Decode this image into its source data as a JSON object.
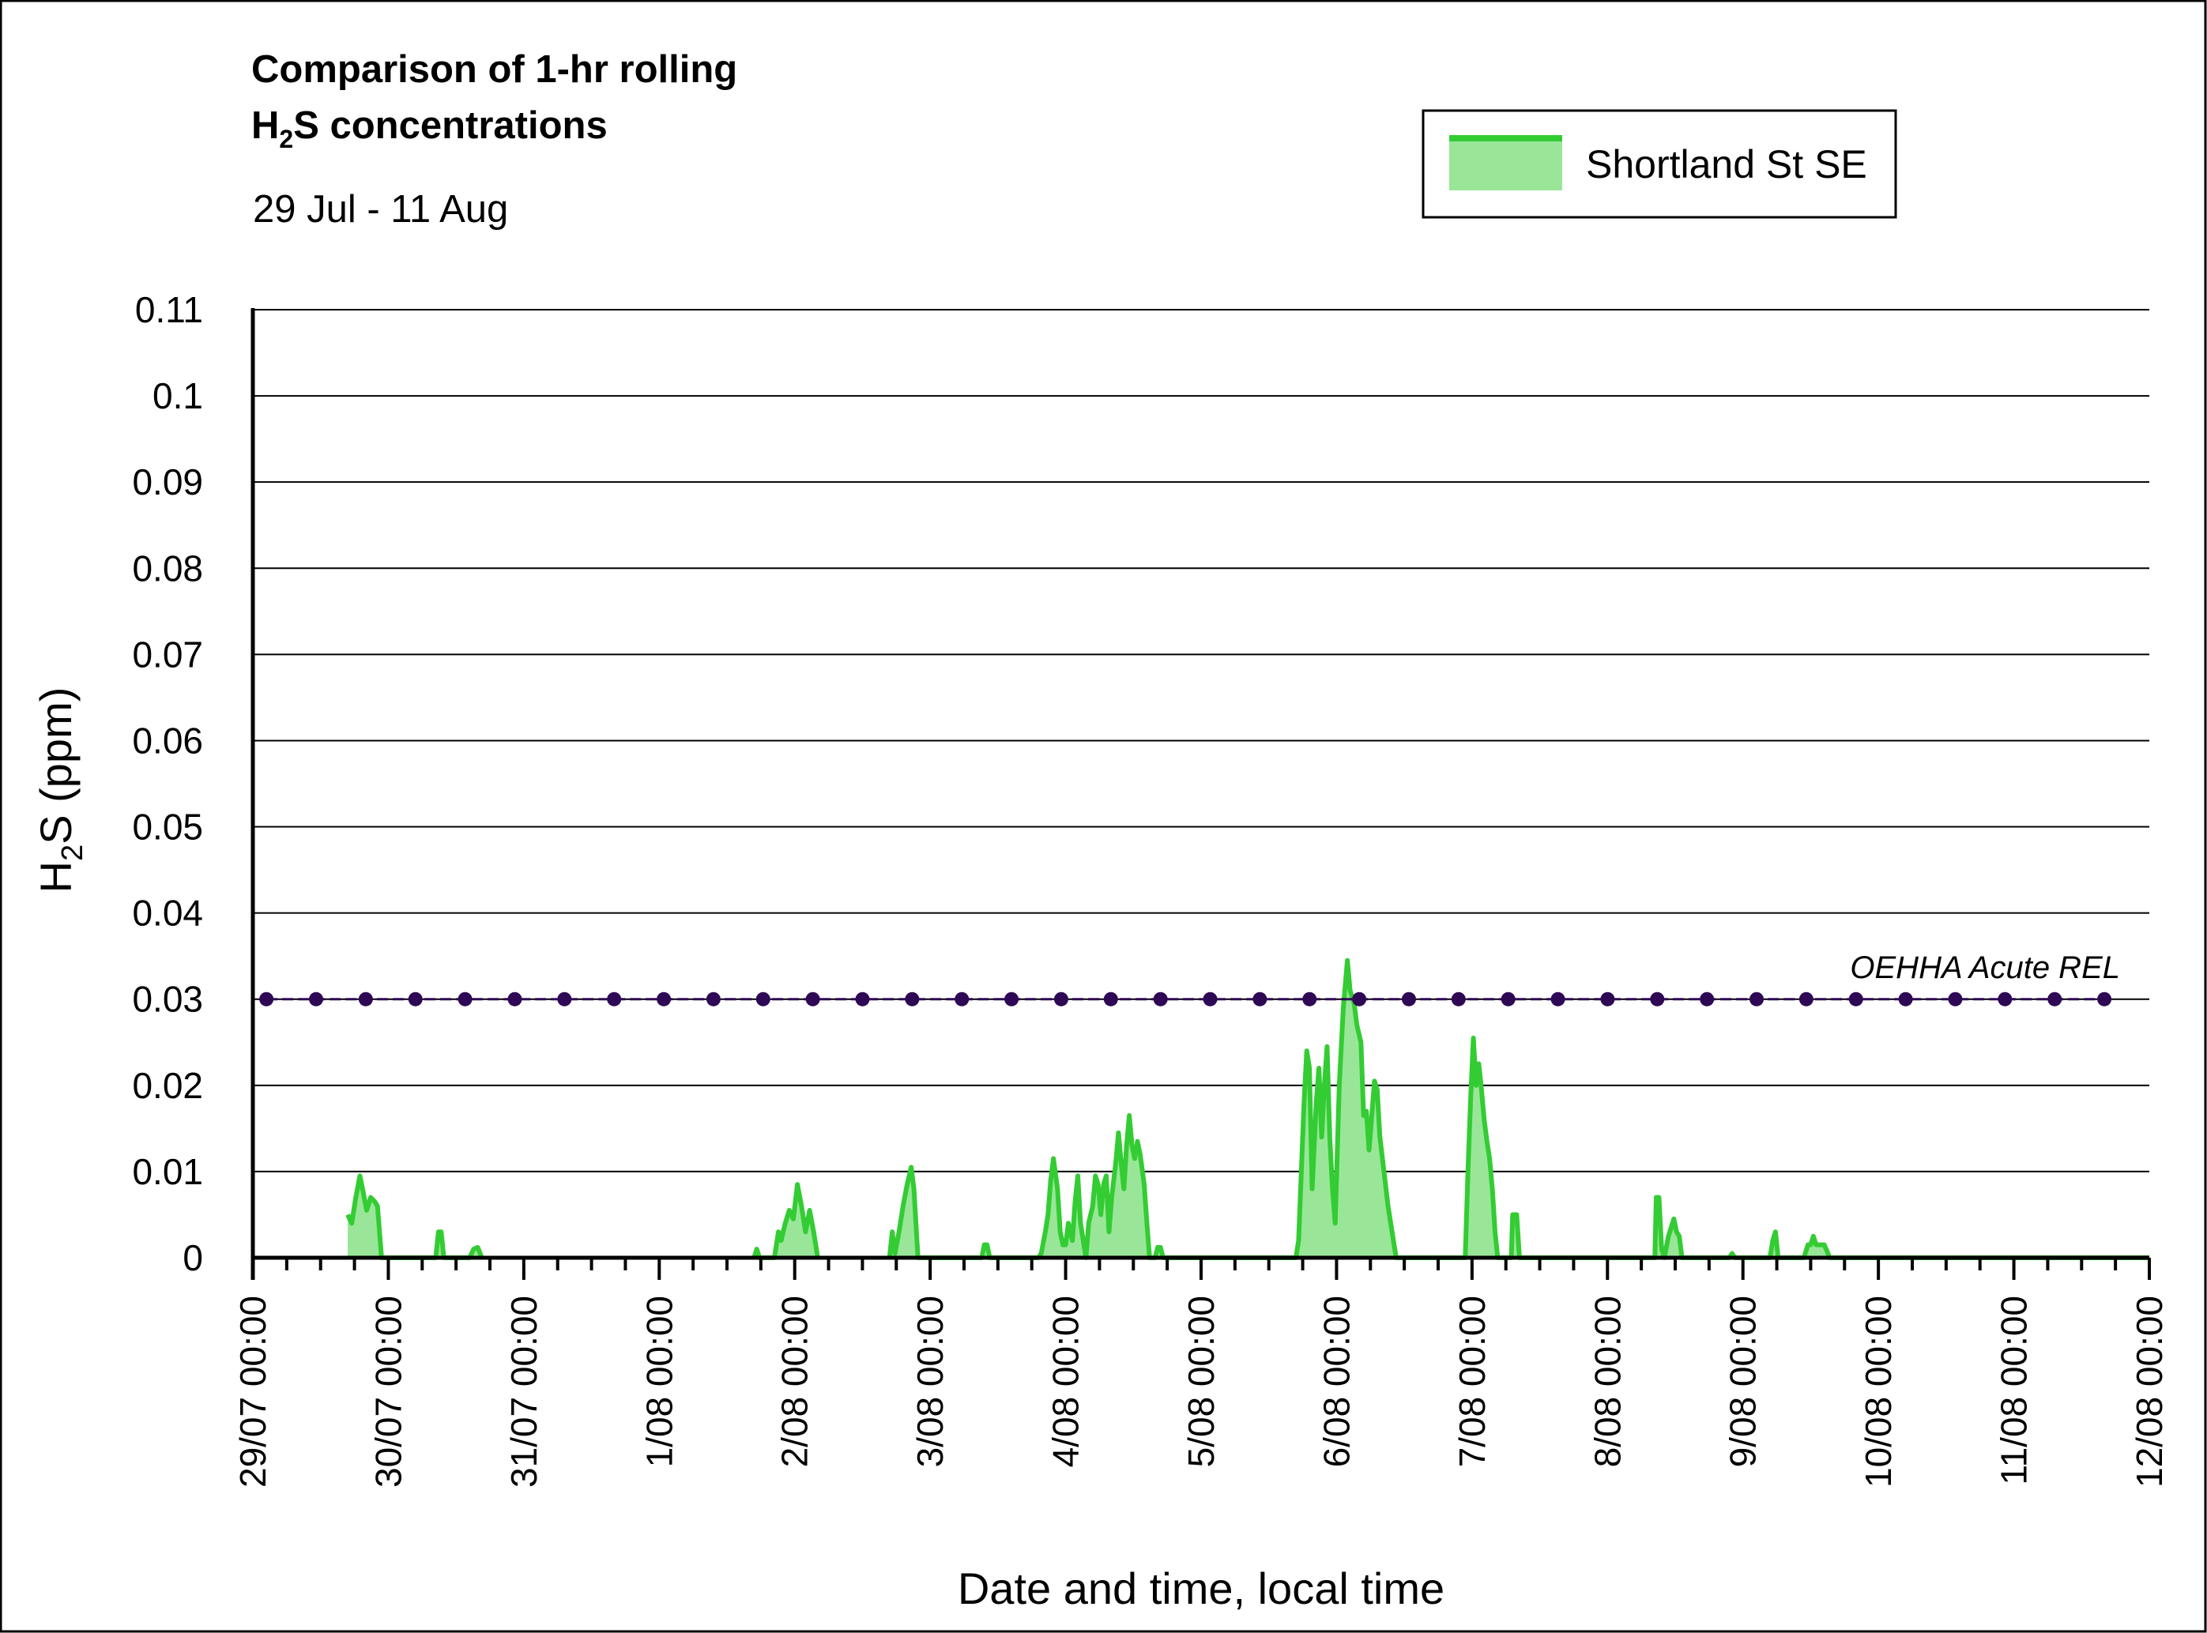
{
  "chart_data": {
    "type": "area",
    "title_line1": "Comparison of 1-hr rolling",
    "title_line2_main": "H",
    "title_line2_sub": "2",
    "title_line2_rest": "S concentrations",
    "subtitle": "29 Jul - 11 Aug",
    "ylabel_main": "H",
    "ylabel_sub": "2",
    "ylabel_rest": "S (ppm)",
    "xlabel": "Date and time, local time",
    "ylim": [
      0,
      0.11
    ],
    "y_ticks": [
      "0",
      "0.01",
      "0.02",
      "0.03",
      "0.04",
      "0.05",
      "0.06",
      "0.07",
      "0.08",
      "0.09",
      "0.1",
      "0.11"
    ],
    "x_range_days": [
      0,
      14
    ],
    "x_ticks": [
      "29/07 00:00",
      "30/07 00:00",
      "31/07 00:00",
      "1/08 00:00",
      "2/08 00:00",
      "3/08 00:00",
      "4/08 00:00",
      "5/08 00:00",
      "6/08 00:00",
      "7/08 00:00",
      "8/08 00:00",
      "9/08 00:00",
      "10/08 00:00",
      "11/08 00:00",
      "12/08 00:00"
    ],
    "grid": true,
    "legend_position": "top-right",
    "series": [
      {
        "name": "Shortland St SE",
        "color": "#33cc33",
        "fill": "#99e699",
        "points": [
          [
            0.7,
            0.005
          ],
          [
            0.73,
            0.004
          ],
          [
            0.76,
            0.007
          ],
          [
            0.79,
            0.0095
          ],
          [
            0.81,
            0.008
          ],
          [
            0.84,
            0.0055
          ],
          [
            0.87,
            0.007
          ],
          [
            0.9,
            0.0065
          ],
          [
            0.92,
            0.006
          ],
          [
            0.95,
            0
          ],
          [
            1.35,
            0
          ],
          [
            1.37,
            0.003
          ],
          [
            1.39,
            0.003
          ],
          [
            1.41,
            0
          ],
          [
            1.6,
            0
          ],
          [
            1.63,
            0.001
          ],
          [
            1.66,
            0.0012
          ],
          [
            1.69,
            0
          ],
          [
            3.7,
            0
          ],
          [
            3.72,
            0.001
          ],
          [
            3.74,
            0
          ],
          [
            3.85,
            0
          ],
          [
            3.88,
            0.003
          ],
          [
            3.9,
            0.002
          ],
          [
            3.93,
            0.004
          ],
          [
            3.96,
            0.0055
          ],
          [
            3.99,
            0.0045
          ],
          [
            4.02,
            0.0085
          ],
          [
            4.05,
            0.006
          ],
          [
            4.08,
            0.003
          ],
          [
            4.11,
            0.0055
          ],
          [
            4.14,
            0.003
          ],
          [
            4.17,
            0
          ],
          [
            4.5,
            0
          ],
          [
            4.7,
            0
          ],
          [
            4.72,
            0.003
          ],
          [
            4.74,
            0.0005
          ],
          [
            4.77,
            0.003
          ],
          [
            4.8,
            0.006
          ],
          [
            4.83,
            0.0085
          ],
          [
            4.86,
            0.0105
          ],
          [
            4.88,
            0.008
          ],
          [
            4.91,
            0
          ],
          [
            5.38,
            0
          ],
          [
            5.4,
            0.0015
          ],
          [
            5.42,
            0.0015
          ],
          [
            5.44,
            0
          ],
          [
            5.8,
            0
          ],
          [
            5.82,
            0.0005
          ],
          [
            5.85,
            0.003
          ],
          [
            5.87,
            0.005
          ],
          [
            5.89,
            0.009
          ],
          [
            5.91,
            0.0115
          ],
          [
            5.94,
            0.008
          ],
          [
            5.96,
            0.003
          ],
          [
            5.98,
            0.0015
          ],
          [
            6.0,
            0.0015
          ],
          [
            6.02,
            0.004
          ],
          [
            6.05,
            0.002
          ],
          [
            6.07,
            0.0065
          ],
          [
            6.09,
            0.0095
          ],
          [
            6.11,
            0.004
          ],
          [
            6.13,
            0.002
          ],
          [
            6.15,
            0
          ],
          [
            6.17,
            0.004
          ],
          [
            6.2,
            0.006
          ],
          [
            6.22,
            0.0095
          ],
          [
            6.24,
            0.0085
          ],
          [
            6.26,
            0.005
          ],
          [
            6.28,
            0.0085
          ],
          [
            6.3,
            0.0095
          ],
          [
            6.32,
            0.003
          ],
          [
            6.34,
            0.007
          ],
          [
            6.37,
            0.011
          ],
          [
            6.39,
            0.0145
          ],
          [
            6.41,
            0.011
          ],
          [
            6.43,
            0.008
          ],
          [
            6.45,
            0.013
          ],
          [
            6.47,
            0.0165
          ],
          [
            6.49,
            0.013
          ],
          [
            6.51,
            0.0115
          ],
          [
            6.53,
            0.0135
          ],
          [
            6.55,
            0.012
          ],
          [
            6.58,
            0.0085
          ],
          [
            6.6,
            0.004
          ],
          [
            6.62,
            0
          ],
          [
            6.66,
            0
          ],
          [
            6.68,
            0.0012
          ],
          [
            6.7,
            0.0012
          ],
          [
            6.72,
            0
          ],
          [
            7.7,
            0
          ],
          [
            7.72,
            0.002
          ],
          [
            7.74,
            0.01
          ],
          [
            7.76,
            0.018
          ],
          [
            7.78,
            0.024
          ],
          [
            7.8,
            0.022
          ],
          [
            7.82,
            0.008
          ],
          [
            7.85,
            0.018
          ],
          [
            7.87,
            0.022
          ],
          [
            7.89,
            0.014
          ],
          [
            7.91,
            0.02
          ],
          [
            7.93,
            0.0245
          ],
          [
            7.95,
            0.014
          ],
          [
            7.97,
            0.008
          ],
          [
            7.99,
            0.004
          ],
          [
            8.02,
            0.02
          ],
          [
            8.05,
            0.029
          ],
          [
            8.08,
            0.0345
          ],
          [
            8.1,
            0.031
          ],
          [
            8.13,
            0.0295
          ],
          [
            8.15,
            0.027
          ],
          [
            8.18,
            0.025
          ],
          [
            8.2,
            0.0165
          ],
          [
            8.22,
            0.017
          ],
          [
            8.24,
            0.0125
          ],
          [
            8.26,
            0.0165
          ],
          [
            8.28,
            0.0205
          ],
          [
            8.3,
            0.0195
          ],
          [
            8.32,
            0.014
          ],
          [
            8.35,
            0.01
          ],
          [
            8.38,
            0.006
          ],
          [
            8.41,
            0.003
          ],
          [
            8.44,
            0
          ],
          [
            8.95,
            0
          ],
          [
            8.97,
            0.01
          ],
          [
            8.99,
            0.0185
          ],
          [
            9.01,
            0.0255
          ],
          [
            9.03,
            0.02
          ],
          [
            9.05,
            0.0225
          ],
          [
            9.07,
            0.0195
          ],
          [
            9.09,
            0.016
          ],
          [
            9.11,
            0.0135
          ],
          [
            9.13,
            0.0115
          ],
          [
            9.15,
            0.008
          ],
          [
            9.17,
            0.003
          ],
          [
            9.19,
            0
          ],
          [
            9.29,
            0
          ],
          [
            9.3,
            0.005
          ],
          [
            9.33,
            0.005
          ],
          [
            9.35,
            0
          ],
          [
            10.35,
            0
          ],
          [
            10.36,
            0.007
          ],
          [
            10.38,
            0.007
          ],
          [
            10.4,
            0.001
          ],
          [
            10.42,
            0
          ],
          [
            10.45,
            0.0025
          ],
          [
            10.47,
            0.0035
          ],
          [
            10.49,
            0.0045
          ],
          [
            10.51,
            0.003
          ],
          [
            10.53,
            0.0025
          ],
          [
            10.55,
            0
          ],
          [
            10.9,
            0
          ],
          [
            10.92,
            0.0005
          ],
          [
            10.94,
            0
          ],
          [
            11.2,
            0
          ],
          [
            11.22,
            0.002
          ],
          [
            11.24,
            0.003
          ],
          [
            11.26,
            0
          ],
          [
            11.45,
            0
          ],
          [
            11.48,
            0.0015
          ],
          [
            11.5,
            0.0015
          ],
          [
            11.52,
            0.0025
          ],
          [
            11.54,
            0.0015
          ],
          [
            11.56,
            0.0015
          ],
          [
            11.6,
            0.0015
          ],
          [
            11.62,
            0.0008
          ],
          [
            11.64,
            0
          ],
          [
            14.0,
            0
          ]
        ]
      },
      {
        "name": "OEHHA Acute REL",
        "color": "#2e0854",
        "constant_y": 0.03,
        "marker_x_start": 0.1,
        "marker_x_end": 13.75,
        "marker_spacing": 0.3667
      }
    ],
    "gaps": [
      [
        2.8,
        3.7
      ],
      [
        4.25,
        4.5
      ],
      [
        4.55,
        4.7
      ]
    ],
    "reference_label": "OEHHA Acute REL",
    "legend_entries": [
      "Shortland St SE"
    ]
  }
}
